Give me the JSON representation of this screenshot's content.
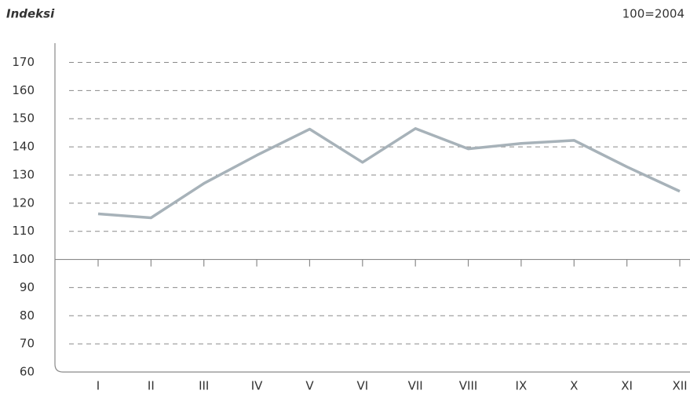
{
  "chart_data": {
    "type": "line",
    "title": "Indeksi",
    "subtitle": "100=2004",
    "categories": [
      "I",
      "II",
      "III",
      "IV",
      "V",
      "VI",
      "VII",
      "VIII",
      "IX",
      "X",
      "XI",
      "XII"
    ],
    "values": [
      116.2,
      114.8,
      127,
      137,
      146.3,
      134.5,
      146.5,
      139.3,
      141.2,
      142.3,
      132.9,
      124.2
    ],
    "color": "#a7b2b9",
    "ylim": [
      60,
      176
    ],
    "yticks": [
      60,
      70,
      80,
      90,
      100,
      110,
      120,
      130,
      140,
      150,
      160,
      170
    ],
    "baseline": 100,
    "grid": true
  }
}
